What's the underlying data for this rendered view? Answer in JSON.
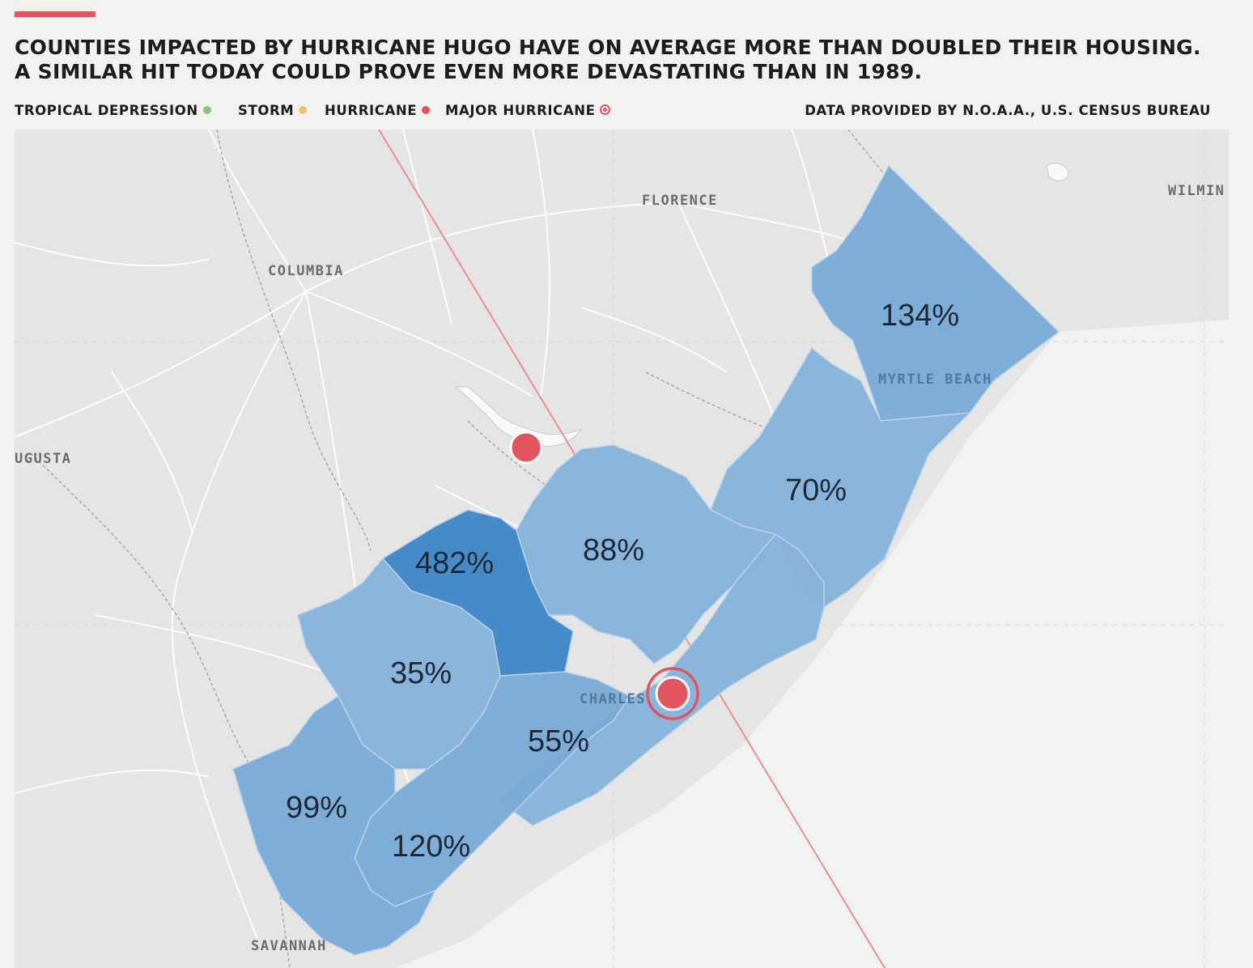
{
  "headline": {
    "line1": "COUNTIES IMPACTED BY HURRICANE HUGO HAVE ON AVERAGE MORE THAN DOUBLED THEIR HOUSING.",
    "line2": "A SIMILAR HIT TODAY COULD PROVE EVEN MORE DEVASTATING THAN IN 1989."
  },
  "legend": {
    "items": [
      {
        "label": "TROPICAL DEPRESSION",
        "color": "#8cc47a",
        "marker": "dot"
      },
      {
        "label": "STORM",
        "color": "#f0c46a",
        "marker": "dot"
      },
      {
        "label": "HURRICANE",
        "color": "#e2555f",
        "marker": "dot"
      },
      {
        "label": "MAJOR HURRICANE",
        "color": "#e2555f",
        "marker": "ring"
      }
    ],
    "source": "DATA PROVIDED BY N.O.A.A., U.S. CENSUS BUREAU"
  },
  "colors": {
    "accent": "#e2555f",
    "land": "#e4e5e4",
    "water": "#f0f2f2",
    "roads": "#fbfbfb",
    "county_light": "#86b3da",
    "county_mid": "#7aaad6",
    "county_dark": "#3f87c8",
    "track": "#e98f95"
  },
  "cities": [
    {
      "name": "FLORENCE"
    },
    {
      "name": "WILMIN"
    },
    {
      "name": "COLUMBIA"
    },
    {
      "name": "MYRTLE BEACH"
    },
    {
      "name": "UGUSTA"
    },
    {
      "name": "CHARLES"
    },
    {
      "name": "SAVANNAH"
    }
  ],
  "counties": [
    {
      "label": "134%",
      "value": 134
    },
    {
      "label": "70%",
      "value": 70
    },
    {
      "label": "88%",
      "value": 88
    },
    {
      "label": "482%",
      "value": 482
    },
    {
      "label": "35%",
      "value": 35
    },
    {
      "label": "55%",
      "value": 55
    },
    {
      "label": "99%",
      "value": 99
    },
    {
      "label": "120%",
      "value": 120
    }
  ],
  "storm_track": {
    "points": [
      {
        "category": "major-hurricane"
      },
      {
        "category": "hurricane"
      }
    ]
  }
}
